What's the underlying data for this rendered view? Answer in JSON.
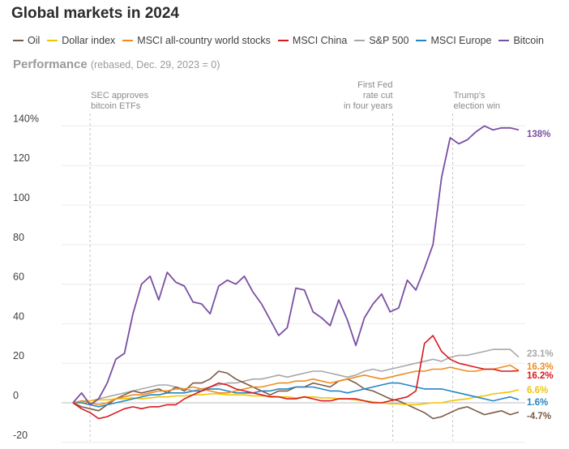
{
  "title": "Global markets in 2024",
  "subtitle": "Performance",
  "subtitle_note": "(rebased, Dec. 29, 2023 = 0)",
  "colors": {
    "oil": "#7b5a45",
    "dollar": "#f2c400",
    "msci_world": "#ef8c1f",
    "msci_china": "#d7191c",
    "sp500": "#a8a8a8",
    "msci_europe": "#2385c5",
    "bitcoin": "#7a4fa3"
  },
  "chart_data": {
    "type": "line",
    "title": "Global markets in 2024",
    "ylabel": "Performance (rebased, Dec. 29, 2023 = 0)",
    "ylim": [
      -20,
      145
    ],
    "yticks": [
      -20,
      0,
      20,
      40,
      60,
      80,
      100,
      120,
      140
    ],
    "ytick_labels": [
      "-20",
      "0",
      "20",
      "40",
      "60",
      "80",
      "100",
      "120",
      "140%"
    ],
    "x_range": [
      0,
      52
    ],
    "x_unit": "weeks since Dec. 29, 2023",
    "annotations": [
      {
        "x": 2,
        "lines": [
          "SEC approves",
          "bitcoin ETFs"
        ]
      },
      {
        "x": 37.3,
        "lines": [
          "First Fed",
          "rate cut",
          "in four years"
        ]
      },
      {
        "x": 44.3,
        "lines": [
          "Trump's",
          "election win"
        ]
      }
    ],
    "series": [
      {
        "name": "Oil",
        "key": "oil",
        "end_label": "-4.7%",
        "values": [
          0,
          -2,
          -3,
          -4,
          -1,
          2,
          4,
          6,
          5,
          6,
          7,
          5,
          8,
          6,
          10,
          10,
          12,
          16,
          15,
          12,
          10,
          8,
          6,
          4,
          6,
          6,
          8,
          8,
          10,
          9,
          8,
          11,
          12,
          10,
          7,
          6,
          4,
          2,
          1,
          -1,
          -3,
          -5,
          -8,
          -7,
          -5,
          -3,
          -2,
          -4,
          -6,
          -5,
          -4,
          -6,
          -4.7
        ]
      },
      {
        "name": "Dollar index",
        "key": "dollar",
        "end_label": "6.6%",
        "values": [
          0,
          0.5,
          1,
          1.5,
          1.5,
          2,
          2,
          2.5,
          2,
          2.5,
          3,
          3,
          3.5,
          3.5,
          4,
          4,
          4.5,
          4.5,
          4,
          4,
          4,
          3.5,
          3.5,
          3.5,
          3,
          3,
          2.5,
          3,
          3,
          2.5,
          2.5,
          2,
          2,
          1.5,
          1,
          0.5,
          0,
          -0.5,
          -0.5,
          -1,
          -1,
          -0.5,
          0,
          0,
          1,
          1.5,
          2,
          3,
          3.5,
          4.5,
          5,
          5.5,
          6.6
        ]
      },
      {
        "name": "MSCI all-country world stocks",
        "key": "msci_world",
        "end_label": "16.3%",
        "values": [
          0,
          1,
          0,
          -1,
          0,
          2,
          3,
          4,
          4,
          5,
          6,
          6,
          7,
          7,
          8,
          7,
          6,
          5,
          5,
          6,
          7,
          8,
          8,
          9,
          10,
          10,
          11,
          11,
          12,
          11,
          10,
          11,
          12,
          13,
          14,
          13,
          12,
          13,
          14,
          15,
          16,
          16,
          17,
          17,
          18,
          17,
          16,
          16,
          17,
          17,
          18,
          19,
          16.3
        ]
      },
      {
        "name": "MSCI China",
        "key": "msci_china",
        "end_label": "16.2%",
        "values": [
          0,
          -3,
          -5,
          -8,
          -7,
          -5,
          -3,
          -2,
          -3,
          -2,
          -2,
          -1,
          -1,
          2,
          4,
          6,
          8,
          10,
          9,
          7,
          6,
          5,
          4,
          3,
          3,
          2,
          2,
          3,
          2,
          1,
          1,
          2,
          2,
          2,
          1,
          0,
          0,
          1,
          2,
          3,
          6,
          30,
          34,
          26,
          22,
          20,
          19,
          18,
          17,
          17,
          16,
          16,
          16.2
        ]
      },
      {
        "name": "S&P 500",
        "key": "sp500",
        "end_label": "23.1%",
        "values": [
          0,
          1,
          1,
          2,
          3,
          4,
          5,
          6,
          7,
          8,
          9,
          9,
          8,
          7,
          6,
          7,
          8,
          9,
          10,
          10,
          11,
          12,
          12,
          13,
          14,
          13,
          14,
          15,
          16,
          16,
          15,
          14,
          13,
          14,
          16,
          17,
          16,
          17,
          18,
          19,
          20,
          21,
          22,
          21,
          23,
          24,
          24,
          25,
          26,
          27,
          27,
          27,
          23.1
        ]
      },
      {
        "name": "MSCI Europe",
        "key": "msci_europe",
        "end_label": "1.6%",
        "values": [
          0,
          0,
          -1,
          -2,
          -1,
          0,
          1,
          2,
          3,
          4,
          4,
          5,
          5,
          5,
          6,
          6,
          7,
          7,
          6,
          5,
          5,
          5,
          6,
          6,
          7,
          7,
          8,
          8,
          8,
          7,
          6,
          6,
          5,
          6,
          7,
          8,
          9,
          10,
          10,
          9,
          8,
          7,
          7,
          7,
          6,
          5,
          4,
          3,
          2,
          1,
          2,
          3,
          1.6
        ]
      },
      {
        "name": "Bitcoin",
        "key": "bitcoin",
        "end_label": "138%",
        "values": [
          0,
          5,
          -1,
          2,
          10,
          22,
          25,
          45,
          60,
          64,
          52,
          66,
          61,
          59,
          51,
          50,
          45,
          59,
          62,
          60,
          64,
          56,
          50,
          42,
          34,
          38,
          58,
          57,
          46,
          43,
          39,
          52,
          42,
          29,
          43,
          50,
          55,
          46,
          48,
          62,
          57,
          68,
          80,
          114,
          134,
          131,
          133,
          137,
          140,
          138,
          139,
          139,
          138
        ]
      }
    ]
  }
}
